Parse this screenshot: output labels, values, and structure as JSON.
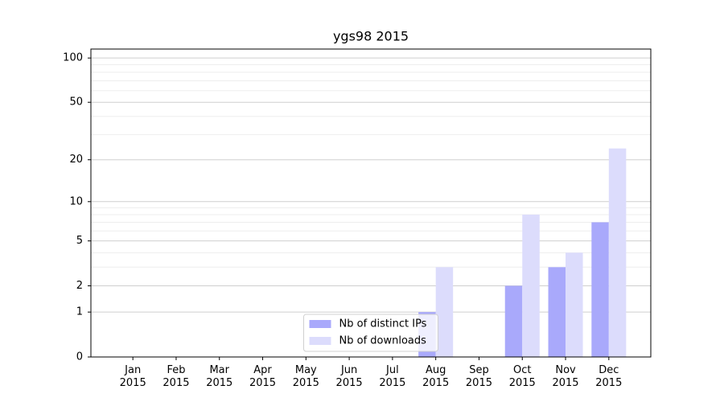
{
  "chart_data": {
    "type": "bar",
    "title": "ygs98 2015",
    "categories": [
      "Jan\n2015",
      "Feb\n2015",
      "Mar\n2015",
      "Apr\n2015",
      "May\n2015",
      "Jun\n2015",
      "Jul\n2015",
      "Aug\n2015",
      "Sep\n2015",
      "Oct\n2015",
      "Nov\n2015",
      "Dec\n2015"
    ],
    "series": [
      {
        "name": "Nb of distinct IPs",
        "color": "#a9a9fb",
        "values": [
          0,
          0,
          0,
          0,
          0,
          0,
          0,
          1,
          0,
          2,
          3,
          7
        ]
      },
      {
        "name": "Nb of downloads",
        "color": "#dcdcfc",
        "values": [
          0,
          0,
          0,
          0,
          0,
          0,
          0,
          3,
          0,
          8,
          4,
          24
        ]
      }
    ],
    "yscale": "log1p",
    "ylim": [
      0,
      115
    ],
    "yticks": [
      0,
      1,
      2,
      5,
      10,
      20,
      50,
      100
    ],
    "minor_yticks": [
      3,
      4,
      6,
      7,
      8,
      9,
      30,
      40,
      60,
      70,
      80,
      90
    ],
    "grid": true,
    "legend": "lower center"
  }
}
